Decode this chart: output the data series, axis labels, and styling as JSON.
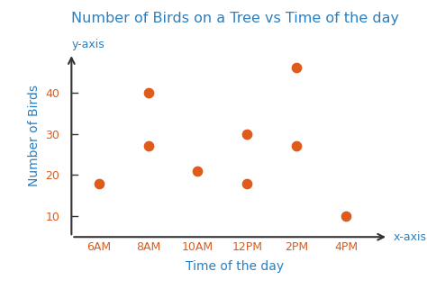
{
  "title": "Number of Birds on a Tree vs Time of the day",
  "xlabel": "Time of the day",
  "ylabel": "Number of Birds",
  "x_label_axis": "x-axis",
  "y_label_axis": "y-axis",
  "x_times": [
    "6AM",
    "8AM",
    "10AM",
    "12PM",
    "2PM",
    "4PM"
  ],
  "x_numeric": [
    0,
    1,
    2,
    3,
    4,
    5
  ],
  "scatter_x": [
    0,
    1,
    1,
    2,
    3,
    3,
    4,
    4,
    5
  ],
  "scatter_y": [
    18,
    27,
    40,
    21,
    18,
    30,
    46,
    27,
    10
  ],
  "dot_color": "#E05A1A",
  "title_color": "#2B7FBF",
  "axis_label_color": "#2B7FBF",
  "tick_color": "#E05A1A",
  "axis_color": "#333333",
  "background_color": "#ffffff",
  "ylim_min": 5,
  "ylim_max": 50,
  "yticks": [
    10,
    20,
    30,
    40
  ],
  "dot_size": 55,
  "title_fontsize": 11.5,
  "label_fontsize": 10,
  "tick_fontsize": 9,
  "axis_tag_fontsize": 9
}
